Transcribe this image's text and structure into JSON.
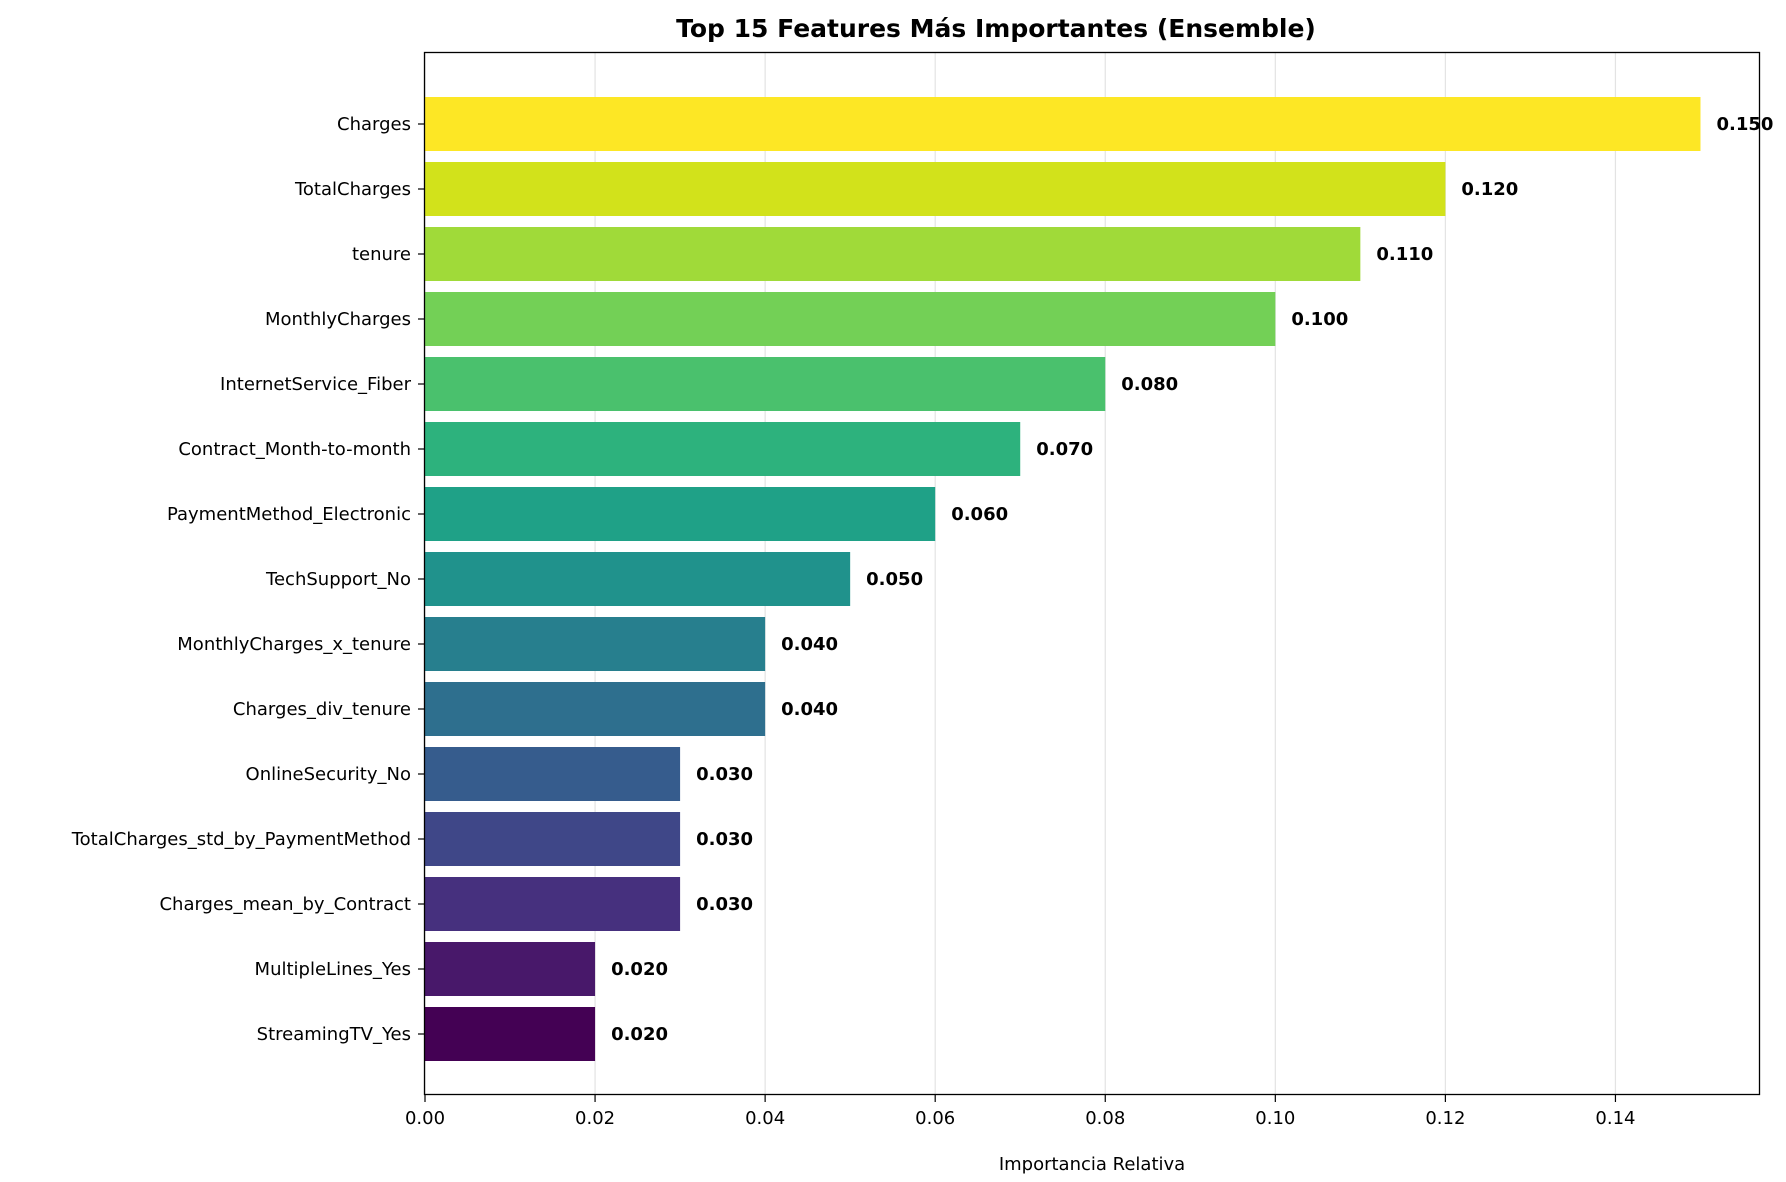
{
  "chart_data": {
    "type": "bar",
    "orientation": "horizontal",
    "title": "Top 15 Features Más Importantes (Ensemble)",
    "xlabel": "Importancia Relativa",
    "ylabel": "",
    "xlim": [
      0,
      0.157
    ],
    "xticks": [
      "0.00",
      "0.02",
      "0.04",
      "0.06",
      "0.08",
      "0.10",
      "0.12",
      "0.14"
    ],
    "xtick_values": [
      0,
      0.02,
      0.04,
      0.06,
      0.08,
      0.1,
      0.12,
      0.14
    ],
    "grid": "x",
    "colormap": "viridis",
    "categories": [
      "Charges",
      "TotalCharges",
      "tenure",
      "MonthlyCharges",
      "InternetService_Fiber",
      "Contract_Month-to-month",
      "PaymentMethod_Electronic",
      "TechSupport_No",
      "MonthlyCharges_x_tenure",
      "Charges_div_tenure",
      "OnlineSecurity_No",
      "TotalCharges_std_by_PaymentMethod",
      "Charges_mean_by_Contract",
      "MultipleLines_Yes",
      "StreamingTV_Yes"
    ],
    "values": [
      0.15,
      0.12,
      0.11,
      0.1,
      0.08,
      0.07,
      0.06,
      0.05,
      0.04,
      0.04,
      0.03,
      0.03,
      0.03,
      0.02,
      0.02
    ],
    "value_labels": [
      "0.150",
      "0.120",
      "0.110",
      "0.100",
      "0.080",
      "0.070",
      "0.060",
      "0.050",
      "0.040",
      "0.040",
      "0.030",
      "0.030",
      "0.030",
      "0.020",
      "0.020"
    ],
    "colors": [
      "#fde725",
      "#d2e21b",
      "#a0da39",
      "#73d056",
      "#4ac16d",
      "#2db27d",
      "#1fa187",
      "#20928c",
      "#277f8e",
      "#2e6f8e",
      "#365c8d",
      "#3f4788",
      "#46307e",
      "#48186a",
      "#440154"
    ]
  }
}
